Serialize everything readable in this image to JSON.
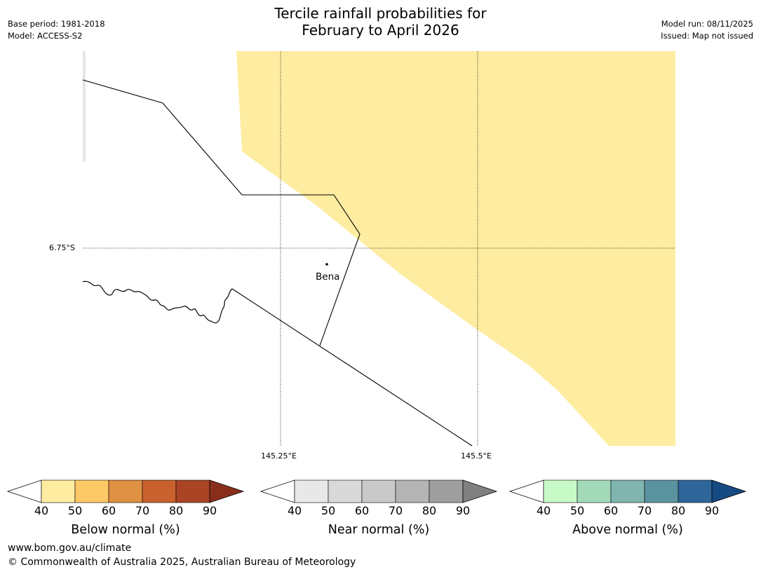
{
  "header": {
    "title_line1": "Tercile rainfall probabilities for",
    "title_line2": "February to April 2026",
    "base_period": "Base period: 1981-2018",
    "model": "Model: ACCESS-S2",
    "model_run": "Model run: 08/11/2025",
    "issued": "Issued: Map not issued"
  },
  "map": {
    "lat_label": "6.75°S",
    "lon_labels": [
      "145.25°E",
      "145.5°E"
    ],
    "place_name": "Bena",
    "shading_color": "#feeca0",
    "shading_meaning": "Below normal 40-50%"
  },
  "legends": [
    {
      "title": "Below normal (%)",
      "ticks": [
        "40",
        "50",
        "60",
        "70",
        "80",
        "90"
      ],
      "colors": [
        "#feeca0",
        "#fdc966",
        "#df9043",
        "#c9612f",
        "#a94424",
        "#8a2e1c"
      ]
    },
    {
      "title": "Near normal (%)",
      "ticks": [
        "40",
        "50",
        "60",
        "70",
        "80",
        "90"
      ],
      "colors": [
        "#e8e8e8",
        "#d9d9d9",
        "#c9c9c9",
        "#b4b4b4",
        "#9e9e9e",
        "#808080"
      ]
    },
    {
      "title": "Above normal (%)",
      "ticks": [
        "40",
        "50",
        "60",
        "70",
        "80",
        "90"
      ],
      "colors": [
        "#c8fac8",
        "#a2d9b9",
        "#7fb5ae",
        "#5a92a0",
        "#2f6699",
        "#154a83"
      ]
    }
  ],
  "footer": {
    "url": "www.bom.gov.au/climate",
    "copyright": "© Commonwealth of Australia 2025, Australian Bureau of Meteorology"
  }
}
